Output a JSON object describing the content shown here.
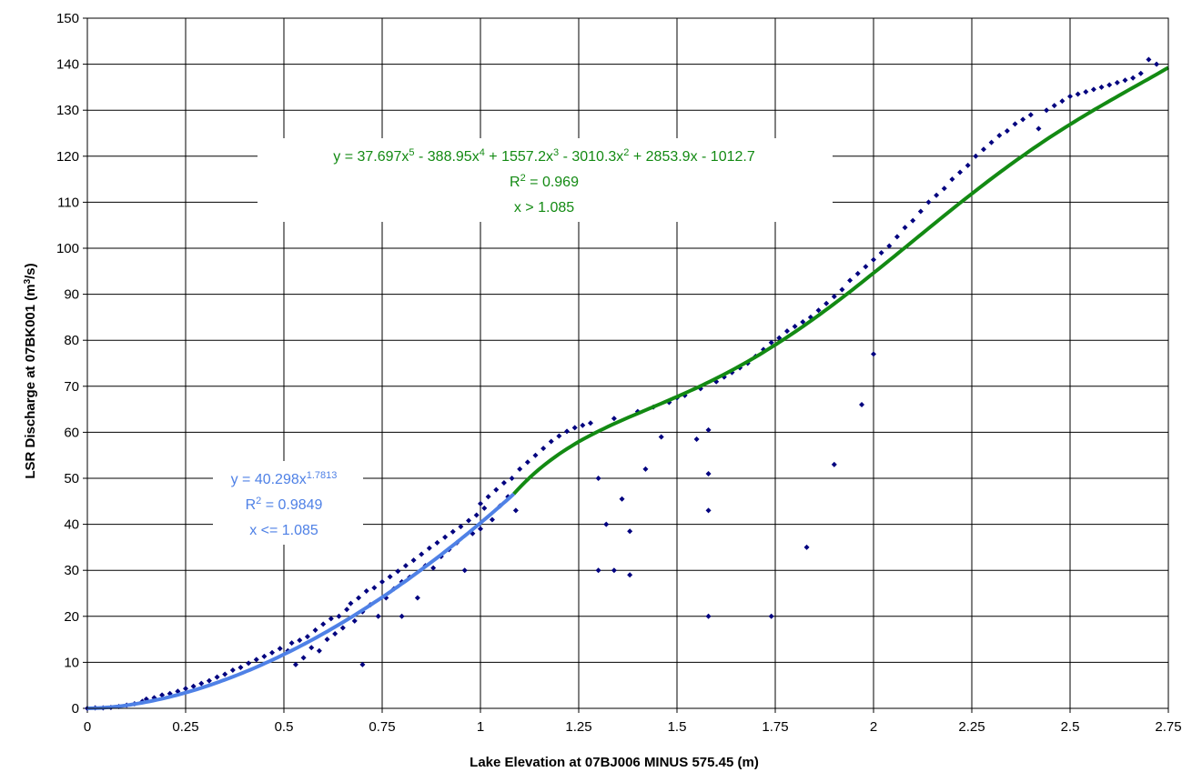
{
  "chart_data": {
    "type": "scatter",
    "title": "",
    "xlabel": "Lake Elevation at 07BJ006 MINUS 575.45 (m)",
    "ylabel_parts": {
      "prefix": "LSR Discharge at 07BK001 (m",
      "sup": "3",
      "suffix": "/s)"
    },
    "xlim": [
      0,
      2.75
    ],
    "ylim": [
      0,
      150
    ],
    "x_ticks": [
      0,
      0.25,
      0.5,
      0.75,
      1,
      1.25,
      1.5,
      1.75,
      2,
      2.25,
      2.5,
      2.75
    ],
    "x_tick_labels": [
      "0",
      "0.25",
      "0.5",
      "0.75",
      "1",
      "1.25",
      "1.5",
      "1.75",
      "2",
      "2.25",
      "2.5",
      "2.75"
    ],
    "y_ticks": [
      0,
      10,
      20,
      30,
      40,
      50,
      60,
      70,
      80,
      90,
      100,
      110,
      120,
      130,
      140,
      150
    ],
    "y_tick_labels": [
      "0",
      "10",
      "20",
      "30",
      "40",
      "50",
      "60",
      "70",
      "80",
      "90",
      "100",
      "110",
      "120",
      "130",
      "140",
      "150"
    ],
    "grid": true,
    "legend": "none",
    "colors": {
      "points": "#00007f",
      "fit_low": "#4f81e6",
      "fit_high": "#138a13",
      "grid": "#000000"
    },
    "series": [
      {
        "kind": "scatter",
        "points": [
          [
            0.0,
            0.0
          ],
          [
            0.02,
            0.1
          ],
          [
            0.04,
            0.1
          ],
          [
            0.06,
            0.2
          ],
          [
            0.08,
            0.4
          ],
          [
            0.1,
            0.7
          ],
          [
            0.12,
            1.0
          ],
          [
            0.14,
            1.5
          ],
          [
            0.15,
            2.0
          ],
          [
            0.17,
            2.3
          ],
          [
            0.19,
            2.9
          ],
          [
            0.21,
            3.2
          ],
          [
            0.23,
            3.7
          ],
          [
            0.25,
            4.3
          ],
          [
            0.27,
            4.8
          ],
          [
            0.29,
            5.4
          ],
          [
            0.31,
            6.0
          ],
          [
            0.33,
            6.8
          ],
          [
            0.35,
            7.4
          ],
          [
            0.37,
            8.3
          ],
          [
            0.39,
            8.9
          ],
          [
            0.41,
            9.8
          ],
          [
            0.43,
            10.6
          ],
          [
            0.45,
            11.3
          ],
          [
            0.47,
            12.1
          ],
          [
            0.49,
            13.0
          ],
          [
            0.51,
            12.5
          ],
          [
            0.52,
            14.2
          ],
          [
            0.53,
            9.5
          ],
          [
            0.54,
            14.8
          ],
          [
            0.55,
            11.0
          ],
          [
            0.56,
            15.6
          ],
          [
            0.57,
            13.2
          ],
          [
            0.58,
            17.0
          ],
          [
            0.59,
            12.5
          ],
          [
            0.6,
            18.3
          ],
          [
            0.61,
            15.0
          ],
          [
            0.62,
            19.5
          ],
          [
            0.63,
            16.2
          ],
          [
            0.64,
            20.0
          ],
          [
            0.65,
            17.5
          ],
          [
            0.66,
            21.5
          ],
          [
            0.67,
            22.8
          ],
          [
            0.68,
            19.0
          ],
          [
            0.69,
            24.0
          ],
          [
            0.7,
            9.5
          ],
          [
            0.7,
            21.0
          ],
          [
            0.71,
            25.5
          ],
          [
            0.72,
            22.5
          ],
          [
            0.73,
            26.2
          ],
          [
            0.74,
            20.0
          ],
          [
            0.75,
            27.5
          ],
          [
            0.76,
            24.0
          ],
          [
            0.77,
            28.6
          ],
          [
            0.78,
            26.0
          ],
          [
            0.79,
            29.8
          ],
          [
            0.8,
            20.0
          ],
          [
            0.8,
            27.5
          ],
          [
            0.81,
            31.0
          ],
          [
            0.82,
            28.5
          ],
          [
            0.83,
            32.2
          ],
          [
            0.84,
            24.0
          ],
          [
            0.85,
            33.5
          ],
          [
            0.86,
            31.0
          ],
          [
            0.87,
            34.8
          ],
          [
            0.88,
            30.5
          ],
          [
            0.89,
            36.0
          ],
          [
            0.9,
            33.0
          ],
          [
            0.91,
            37.2
          ],
          [
            0.92,
            34.5
          ],
          [
            0.93,
            38.4
          ],
          [
            0.94,
            36.0
          ],
          [
            0.95,
            39.5
          ],
          [
            0.96,
            30.0
          ],
          [
            0.97,
            40.8
          ],
          [
            0.98,
            38.0
          ],
          [
            0.99,
            42.0
          ],
          [
            1.0,
            44.5
          ],
          [
            1.0,
            39.0
          ],
          [
            1.01,
            43.5
          ],
          [
            1.02,
            46.0
          ],
          [
            1.03,
            41.0
          ],
          [
            1.04,
            47.5
          ],
          [
            1.05,
            44.0
          ],
          [
            1.06,
            49.0
          ],
          [
            1.07,
            46.0
          ],
          [
            1.08,
            50.0
          ],
          [
            1.09,
            43.0
          ],
          [
            1.1,
            52.0
          ],
          [
            1.12,
            53.5
          ],
          [
            1.14,
            55.0
          ],
          [
            1.16,
            56.5
          ],
          [
            1.18,
            58.0
          ],
          [
            1.2,
            59.2
          ],
          [
            1.22,
            60.2
          ],
          [
            1.24,
            61.0
          ],
          [
            1.26,
            61.5
          ],
          [
            1.28,
            62.0
          ],
          [
            1.3,
            50.0
          ],
          [
            1.3,
            30.0
          ],
          [
            1.32,
            40.0
          ],
          [
            1.34,
            63.0
          ],
          [
            1.34,
            30.0
          ],
          [
            1.36,
            45.5
          ],
          [
            1.38,
            38.5
          ],
          [
            1.38,
            29.0
          ],
          [
            1.4,
            64.5
          ],
          [
            1.42,
            52.0
          ],
          [
            1.44,
            65.5
          ],
          [
            1.46,
            59.0
          ],
          [
            1.48,
            66.5
          ],
          [
            1.5,
            67.5
          ],
          [
            1.52,
            68.0
          ],
          [
            1.55,
            58.5
          ],
          [
            1.56,
            69.5
          ],
          [
            1.58,
            60.5
          ],
          [
            1.58,
            51.0
          ],
          [
            1.58,
            43.0
          ],
          [
            1.58,
            20.0
          ],
          [
            1.6,
            71.0
          ],
          [
            1.62,
            72.0
          ],
          [
            1.64,
            73.0
          ],
          [
            1.66,
            74.0
          ],
          [
            1.68,
            75.0
          ],
          [
            1.7,
            76.5
          ],
          [
            1.72,
            78.0
          ],
          [
            1.74,
            79.5
          ],
          [
            1.74,
            20.0
          ],
          [
            1.76,
            80.5
          ],
          [
            1.78,
            82.0
          ],
          [
            1.8,
            83.0
          ],
          [
            1.82,
            84.0
          ],
          [
            1.83,
            35.0
          ],
          [
            1.84,
            85.0
          ],
          [
            1.86,
            86.5
          ],
          [
            1.88,
            88.0
          ],
          [
            1.9,
            53.0
          ],
          [
            1.9,
            89.5
          ],
          [
            1.92,
            91.0
          ],
          [
            1.94,
            93.0
          ],
          [
            1.96,
            94.5
          ],
          [
            1.97,
            66.0
          ],
          [
            1.98,
            96.0
          ],
          [
            2.0,
            97.5
          ],
          [
            2.0,
            77.0
          ],
          [
            2.02,
            99.0
          ],
          [
            2.04,
            100.5
          ],
          [
            2.06,
            102.5
          ],
          [
            2.08,
            104.5
          ],
          [
            2.1,
            106.0
          ],
          [
            2.12,
            108.0
          ],
          [
            2.14,
            110.0
          ],
          [
            2.16,
            111.5
          ],
          [
            2.18,
            113.0
          ],
          [
            2.2,
            115.0
          ],
          [
            2.22,
            116.5
          ],
          [
            2.24,
            118.0
          ],
          [
            2.26,
            120.0
          ],
          [
            2.28,
            121.5
          ],
          [
            2.3,
            123.0
          ],
          [
            2.32,
            124.5
          ],
          [
            2.34,
            125.5
          ],
          [
            2.36,
            127.0
          ],
          [
            2.38,
            128.0
          ],
          [
            2.4,
            129.0
          ],
          [
            2.42,
            126.0
          ],
          [
            2.44,
            130.0
          ],
          [
            2.46,
            131.0
          ],
          [
            2.48,
            132.0
          ],
          [
            2.5,
            133.0
          ],
          [
            2.52,
            133.5
          ],
          [
            2.54,
            134.0
          ],
          [
            2.56,
            134.5
          ],
          [
            2.58,
            135.0
          ],
          [
            2.6,
            135.5
          ],
          [
            2.62,
            136.0
          ],
          [
            2.64,
            136.5
          ],
          [
            2.66,
            137.0
          ],
          [
            2.68,
            138.0
          ],
          [
            2.7,
            141.0
          ],
          [
            2.72,
            140.0
          ]
        ]
      },
      {
        "kind": "fit_low"
      },
      {
        "kind": "fit_high"
      }
    ],
    "annotations": [
      {
        "id": "fit-high",
        "eq_text": "y = 37.697x5 - 388.95x4 + 1557.2x3 - 3010.3x2 + 2853.9x - 1012.7",
        "r2_text": "R2 = 0.969",
        "cond_text": "x > 1.085"
      },
      {
        "id": "fit-low",
        "eq_text": "y = 40.298x1.7813",
        "r2_text": "R2 = 0.9849",
        "cond_text": "x <= 1.085"
      }
    ]
  }
}
